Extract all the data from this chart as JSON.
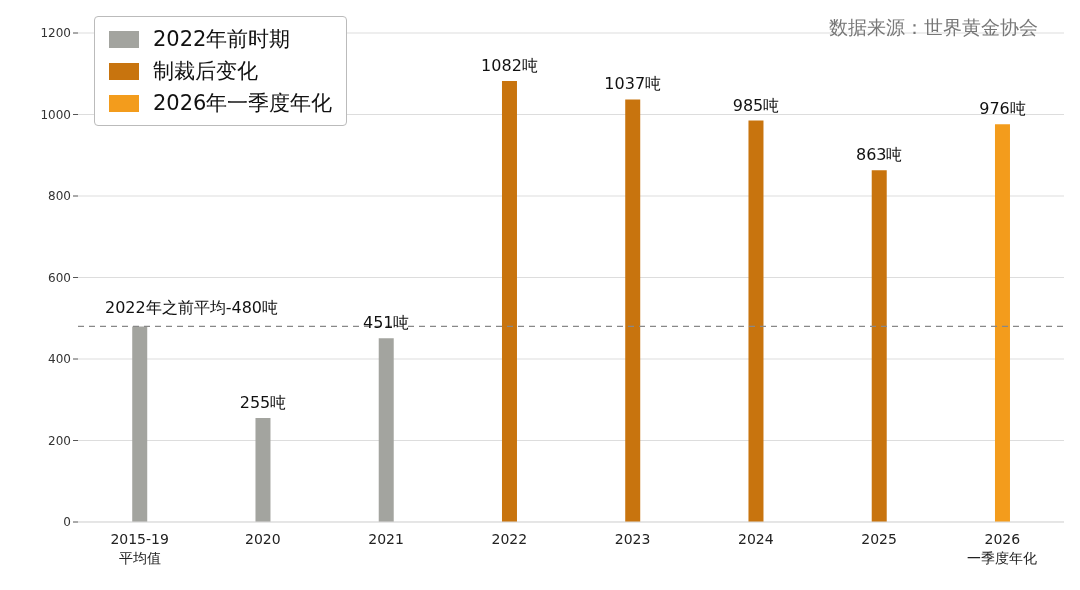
{
  "chart_data": {
    "type": "bar",
    "categories": [
      "2015-19\n平均值",
      "2020",
      "2021",
      "2022",
      "2023",
      "2024",
      "2025",
      "2026\n一季度年化"
    ],
    "series": [
      {
        "name": "2022年前时期",
        "color": "#a3a49f",
        "values": [
          480,
          255,
          451,
          null,
          null,
          null,
          null,
          null
        ],
        "value_labels": [
          null,
          "255吨",
          "451吨",
          null,
          null,
          null,
          null,
          null
        ]
      },
      {
        "name": "制裁后变化",
        "color": "#c8740e",
        "values": [
          null,
          null,
          null,
          1082,
          1037,
          985,
          863,
          null
        ],
        "value_labels": [
          null,
          null,
          null,
          "1082吨",
          "1037吨",
          "985吨",
          "863吨",
          null
        ]
      },
      {
        "name": "2026年一季度年化",
        "color": "#f39c1c",
        "values": [
          null,
          null,
          null,
          null,
          null,
          null,
          null,
          976
        ],
        "value_labels": [
          null,
          null,
          null,
          null,
          null,
          null,
          null,
          "976吨"
        ]
      }
    ],
    "stacked": true,
    "ylim": [
      0,
      1200
    ],
    "yticks": [
      0,
      200,
      400,
      600,
      800,
      1000,
      1200
    ],
    "grid": "y",
    "legend": "top left",
    "ref_lines": [
      {
        "axis": "y",
        "value": 480,
        "label": "2022年之前平均-480吨",
        "color": "#888888",
        "line_style": "dashed"
      }
    ],
    "annotations": [
      "数据来源：世界黄金协会"
    ]
  }
}
